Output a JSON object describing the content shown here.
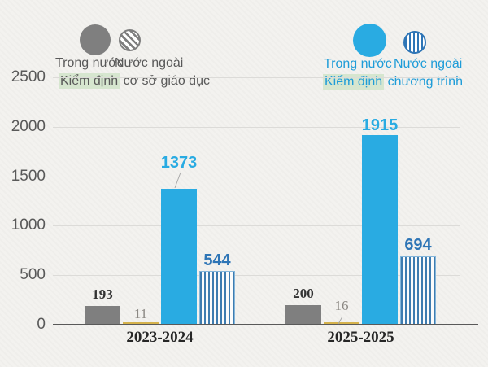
{
  "legend_left": {
    "items": [
      {
        "label": "Trong nước",
        "swatch": "gray-solid-circle"
      },
      {
        "label": "Nước ngoài",
        "swatch": "gray-diagonal-hatched-circle"
      }
    ],
    "caption_highlight": "Kiểm định",
    "caption_rest": " cơ sở giáo dục"
  },
  "legend_right": {
    "items": [
      {
        "label": "Trong nước",
        "swatch": "blue-solid-circle"
      },
      {
        "label": "Nước ngoài",
        "swatch": "blue-vertical-striped-circle"
      }
    ],
    "caption_highlight": "Kiểm định",
    "caption_rest": " chương trình"
  },
  "colors": {
    "gray_bar": "#7F7F7F",
    "gold_bar": "#D5B24C",
    "blue_bar": "#29ABE2",
    "stripe_blue": "#3E7CB0",
    "stripe_border": "#85B6DA",
    "light_blue_label": "#29ABE2",
    "dark_blue_label": "#2E75B6",
    "legend_left_text": "#595959",
    "legend_right_text": "#1E9CD8",
    "highlight_green": "#D6E6CF",
    "axis_text": "#595959",
    "leader_line": "#A9A9A9"
  },
  "chart_data": {
    "type": "bar",
    "categories": [
      "2023-2024",
      "2025-2025"
    ],
    "series": [
      {
        "name": "Kiểm định cơ sở giáo dục – Trong nước",
        "values": [
          193,
          200
        ],
        "color": "#7F7F7F",
        "style": "solid"
      },
      {
        "name": "Kiểm định cơ sở giáo dục – Nước ngoài",
        "values": [
          11,
          16
        ],
        "color": "#D5B24C",
        "style": "solid"
      },
      {
        "name": "Kiểm định chương trình – Trong nước",
        "values": [
          1373,
          1915
        ],
        "color": "#29ABE2",
        "style": "solid"
      },
      {
        "name": "Kiểm định chương trình – Nước ngoài",
        "values": [
          544,
          694
        ],
        "color": "#3E7CB0",
        "style": "vertical-stripes"
      }
    ],
    "yticks": [
      0,
      500,
      1000,
      1500,
      2000,
      2500
    ],
    "ylim": [
      0,
      2500
    ],
    "grid": true,
    "legend_position": "top"
  }
}
